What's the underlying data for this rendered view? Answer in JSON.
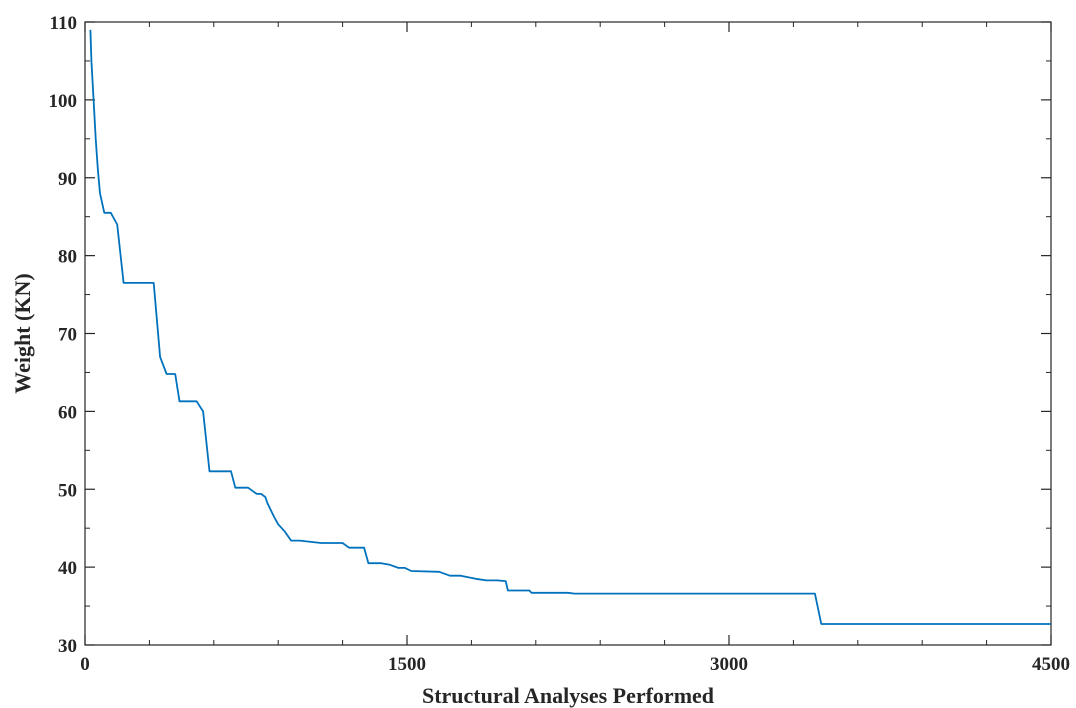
{
  "chart_data": {
    "type": "line",
    "title": "",
    "xlabel": "Structural Analyses Performed",
    "ylabel": "Weight (KN)",
    "xlim": [
      0,
      4500
    ],
    "ylim": [
      30,
      110
    ],
    "xticks": [
      0,
      1500,
      3000,
      4500
    ],
    "yticks": [
      30,
      40,
      50,
      60,
      70,
      80,
      90,
      100,
      110
    ],
    "grid": false,
    "legend": "none",
    "colors": {
      "line": "#0072BD",
      "axis": "#262626",
      "background": "#ffffff"
    },
    "series": [
      {
        "x": [
          25,
          30,
          40,
          50,
          60,
          70,
          90,
          120,
          150,
          180,
          320,
          350,
          380,
          420,
          440,
          520,
          550,
          580,
          680,
          700,
          760,
          800,
          820,
          840,
          850,
          880,
          900,
          930,
          960,
          1000,
          1100,
          1200,
          1230,
          1250,
          1300,
          1320,
          1380,
          1420,
          1460,
          1490,
          1520,
          1650,
          1700,
          1750,
          1820,
          1870,
          1920,
          1960,
          1970,
          2070,
          2080,
          2230,
          2250,
          2280,
          2300,
          2800,
          3400,
          3430,
          4500
        ],
        "y": [
          109,
          105,
          100,
          95,
          91,
          88,
          85.5,
          85.5,
          84,
          76.5,
          76.5,
          67,
          64.8,
          64.8,
          61.3,
          61.3,
          60,
          52.3,
          52.3,
          50.2,
          50.2,
          49.4,
          49.4,
          49,
          48.2,
          46.5,
          45.5,
          44.6,
          43.4,
          43.4,
          43.1,
          43.1,
          42.5,
          42.5,
          42.5,
          40.5,
          40.5,
          40.3,
          39.9,
          39.9,
          39.5,
          39.4,
          38.9,
          38.9,
          38.5,
          38.3,
          38.3,
          38.2,
          37,
          37,
          36.7,
          36.7,
          36.7,
          36.6,
          36.6,
          36.6,
          36.6,
          32.7,
          32.7
        ]
      }
    ]
  }
}
